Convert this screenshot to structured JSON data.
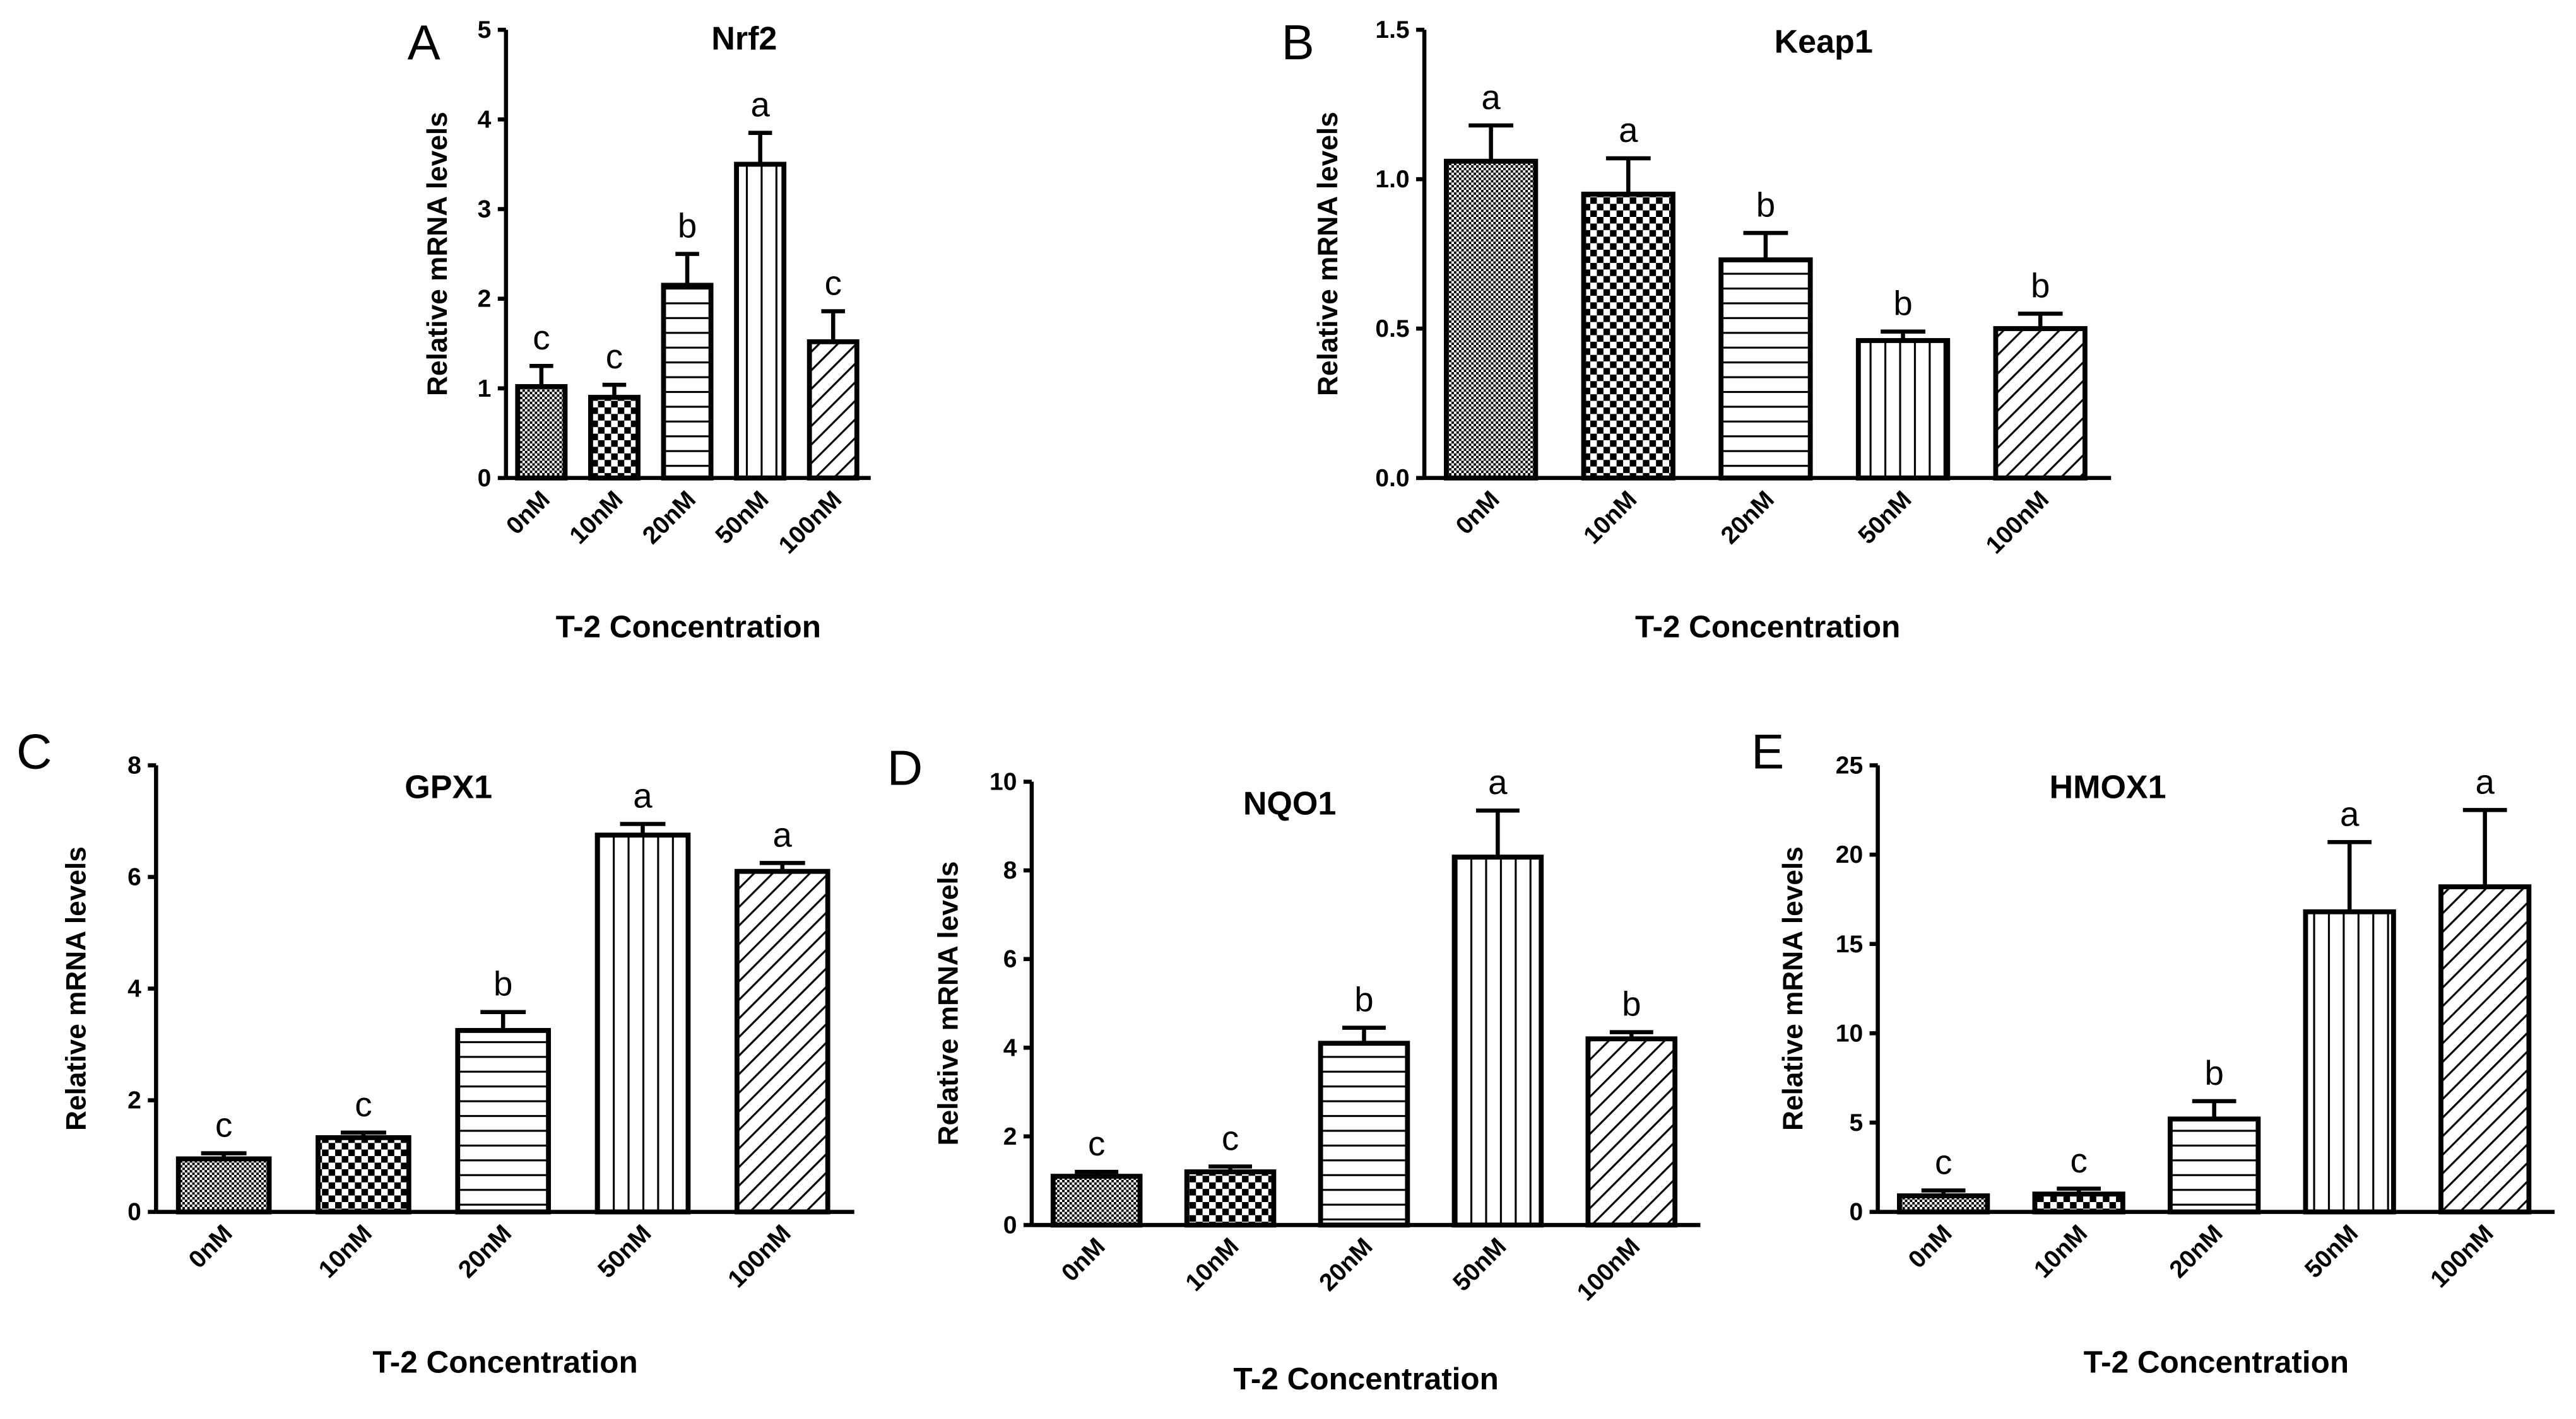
{
  "chart_data": [
    {
      "type": "bar",
      "panel": "A",
      "title": "Nrf2",
      "xlabel": "T-2 Concentration",
      "ylabel": "Relative mRNA levels",
      "categories": [
        "0nM",
        "10nM",
        "20nM",
        "50nM",
        "100nM"
      ],
      "values": [
        1.02,
        0.9,
        2.15,
        3.5,
        1.52
      ],
      "error_upper": [
        1.25,
        1.04,
        2.5,
        3.85,
        1.86
      ],
      "significance": [
        "c",
        "c",
        "b",
        "a",
        "c"
      ],
      "ylim": [
        0,
        5
      ],
      "yticks": [
        0,
        1,
        2,
        3,
        4,
        5
      ],
      "ytick_labels": [
        "0",
        "1",
        "2",
        "3",
        "4",
        "5"
      ]
    },
    {
      "type": "bar",
      "panel": "B",
      "title": "Keap1",
      "xlabel": "T-2 Concentration",
      "ylabel": "Relative mRNA levels",
      "categories": [
        "0nM",
        "10nM",
        "20nM",
        "50nM",
        "100nM"
      ],
      "values": [
        1.06,
        0.95,
        0.73,
        0.46,
        0.5
      ],
      "error_upper": [
        1.18,
        1.07,
        0.82,
        0.49,
        0.55
      ],
      "significance": [
        "a",
        "a",
        "b",
        "b",
        "b"
      ],
      "ylim": [
        0,
        1.5
      ],
      "yticks": [
        0,
        0.5,
        1,
        1.5
      ],
      "ytick_labels": [
        "0.0",
        "0.5",
        "1.0",
        "1.5"
      ]
    },
    {
      "type": "bar",
      "panel": "C",
      "title": "GPX1",
      "xlabel": "T-2 Concentration",
      "ylabel": "Relative mRNA levels",
      "categories": [
        "0nM",
        "10nM",
        "20nM",
        "50nM",
        "100nM"
      ],
      "values": [
        0.95,
        1.33,
        3.25,
        6.75,
        6.1
      ],
      "error_upper": [
        1.05,
        1.42,
        3.58,
        6.95,
        6.25
      ],
      "significance": [
        "c",
        "c",
        "b",
        "a",
        "a"
      ],
      "ylim": [
        0,
        8
      ],
      "yticks": [
        0,
        2,
        4,
        6,
        8
      ],
      "ytick_labels": [
        "0",
        "2",
        "4",
        "6",
        "8"
      ]
    },
    {
      "type": "bar",
      "panel": "D",
      "title": "NQO1",
      "xlabel": "T-2 Concentration",
      "ylabel": "Relative mRNA levels",
      "categories": [
        "0nM",
        "10nM",
        "20nM",
        "50nM",
        "100nM"
      ],
      "values": [
        1.1,
        1.2,
        4.1,
        8.3,
        4.2
      ],
      "error_upper": [
        1.2,
        1.32,
        4.45,
        9.35,
        4.35
      ],
      "significance": [
        "c",
        "c",
        "b",
        "a",
        "b"
      ],
      "ylim": [
        0,
        10
      ],
      "yticks": [
        0,
        2,
        4,
        6,
        8,
        10
      ],
      "ytick_labels": [
        "0",
        "2",
        "4",
        "6",
        "8",
        "10"
      ]
    },
    {
      "type": "bar",
      "panel": "E",
      "title": "HMOX1",
      "xlabel": "T-2 Concentration",
      "ylabel": "Relative mRNA levels",
      "categories": [
        "0nM",
        "10nM",
        "20nM",
        "50nM",
        "100nM"
      ],
      "values": [
        0.9,
        1.0,
        5.2,
        16.8,
        18.2
      ],
      "error_upper": [
        1.2,
        1.3,
        6.2,
        20.7,
        22.5
      ],
      "significance": [
        "c",
        "c",
        "b",
        "a",
        "a"
      ],
      "ylim": [
        0,
        25
      ],
      "yticks": [
        0,
        5,
        10,
        15,
        20,
        25
      ],
      "ytick_labels": [
        "0",
        "5",
        "10",
        "15",
        "20",
        "25"
      ]
    }
  ]
}
